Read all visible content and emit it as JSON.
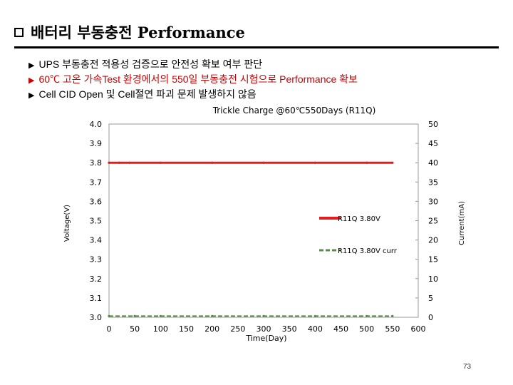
{
  "slide": {
    "title": "배터리 부동충전 Performance",
    "bullets": [
      {
        "text": "UPS 부동충전 적용성 검증으로 안전성 확보 여부 판단",
        "highlight": false
      },
      {
        "text": "60℃ 고온 가속Test 환경에서의 550일 부동충전 시험으로 Performance 확보",
        "highlight": true
      },
      {
        "text": "Cell CID Open  및 Cell절연 파괴 문제 발생하지 않음",
        "highlight": false
      }
    ],
    "page_number": "73"
  },
  "chart_data": {
    "type": "line",
    "title": "Trickle Charge @60℃550Days (R11Q)",
    "xlabel": "Time(Day)",
    "ylabel": "Voltage(V)",
    "y2label": "Current(mA)",
    "xlim": [
      0,
      600
    ],
    "ylim": [
      3.0,
      4.0
    ],
    "y2lim": [
      0,
      50
    ],
    "x_ticks": [
      "0",
      "50",
      "100",
      "150",
      "200",
      "250",
      "300",
      "350",
      "400",
      "450",
      "500",
      "550",
      "600"
    ],
    "y_ticks": [
      "4.0",
      "3.9",
      "3.8",
      "3.7",
      "3.6",
      "3.5",
      "3.4",
      "3.3",
      "3.2",
      "3.1",
      "3.0"
    ],
    "y2_ticks": [
      "50",
      "45",
      "40",
      "35",
      "30",
      "25",
      "20",
      "15",
      "10",
      "5",
      "0"
    ],
    "grid": false,
    "legend_position": "right",
    "series": [
      {
        "name": "R11Q 3.80V",
        "axis": "left",
        "color": "#e41a1c",
        "dash": "solid",
        "x": [
          0,
          20,
          40,
          100,
          200,
          300,
          400,
          500,
          550
        ],
        "y": [
          3.8,
          3.8,
          3.8,
          3.8,
          3.8,
          3.8,
          3.8,
          3.8,
          3.8
        ]
      },
      {
        "name": "R11Q 3.80V curr",
        "axis": "right",
        "color": "#5a8a4a",
        "dash": "dashed",
        "x": [
          0,
          50,
          100,
          200,
          300,
          400,
          500,
          550
        ],
        "y": [
          0.3,
          0.3,
          0.3,
          0.3,
          0.3,
          0.3,
          0.3,
          0.3
        ]
      }
    ]
  }
}
